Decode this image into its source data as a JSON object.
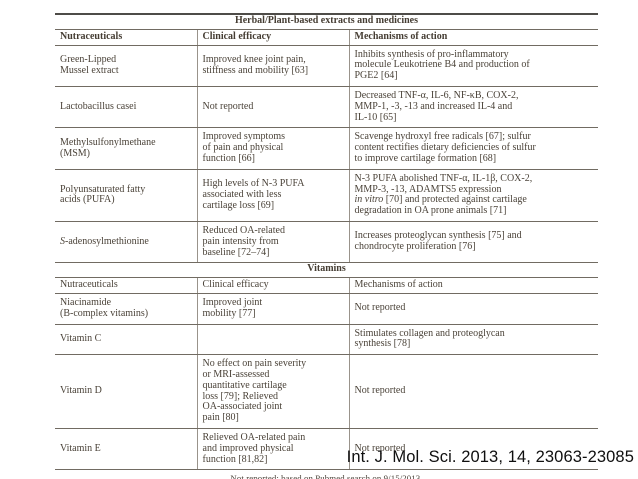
{
  "table": {
    "sections": [
      {
        "title": "Herbal/Plant-based extracts and medicines",
        "headers": [
          "Nutraceuticals",
          "Clinical efficacy",
          "Mechanisms of action"
        ],
        "headers_bold": true,
        "rows": [
          {
            "cells": [
              "Green-Lipped\nMussel extract",
              "Improved knee joint pain,\nstiffness and mobility [63]",
              "Inhibits synthesis of pro-inflammatory\nmolecule Leukotriene B4 and production of\nPGE2 [64]"
            ]
          },
          {
            "cells": [
              "Lactobacillus casei",
              "Not reported",
              "Decreased TNF-α, IL-6, NF-κB, COX-2,\nMMP-1, -3, -13 and increased IL-4 and\nIL-10 [65]"
            ]
          },
          {
            "cells": [
              "Methylsulfonylmethane\n(MSM)",
              "Improved symptoms\nof pain and physical\nfunction [66]",
              "Scavenge hydroxyl free radicals [67]; sulfur\ncontent rectifies dietary deficiencies of sulfur\nto improve cartilage formation [68]"
            ]
          },
          {
            "cells": [
              "Polyunsaturated fatty\nacids (PUFA)",
              "High levels of N-3 PUFA\nassociated with less\ncartilage loss [69]",
              [
                {
                  "t": "N-3 PUFA abolished TNF-α, IL-1β, COX-2,\nMMP-3, -13, ADAMTS5 expression\n"
                },
                {
                  "t": "in vitro",
                  "i": true
                },
                {
                  "t": " [70] and protected against cartilage\ndegradation in OA prone animals [71]"
                }
              ]
            ]
          },
          {
            "cells": [
              [
                {
                  "t": "S",
                  "i": true
                },
                {
                  "t": "-adenosylmethionine"
                }
              ],
              "Reduced OA-related\npain intensity from\nbaseline [72–74]",
              "Increases proteoglycan synthesis [75] and\nchondrocyte proliferation [76]"
            ]
          }
        ]
      },
      {
        "title": "Vitamins",
        "headers": [
          "Nutraceuticals",
          "Clinical efficacy",
          "Mechanisms of action"
        ],
        "headers_bold": false,
        "rows": [
          {
            "cells": [
              "Niacinamide\n(B-complex vitamins)",
              "Improved joint\nmobility [77]",
              "Not reported"
            ]
          },
          {
            "cells": [
              "Vitamin C",
              "",
              "Stimulates collagen and proteoglycan\nsynthesis [78]"
            ]
          },
          {
            "cells": [
              "Vitamin D",
              "No effect on pain severity\nor MRI-assessed\nquantitative cartilage\nloss [79]; Relieved\nOA-associated joint\npain [80]",
              "Not reported"
            ]
          },
          {
            "cells": [
              "Vitamin E",
              "Relieved OA-related pain\nand improved physical\nfunction [81,82]",
              "Not reported"
            ]
          }
        ]
      }
    ],
    "footnote": "Not reported: based on Pubmed search on 9/15/2013."
  },
  "citation": "Int. J. Mol. Sci. 2013, 14, 23063-23085"
}
